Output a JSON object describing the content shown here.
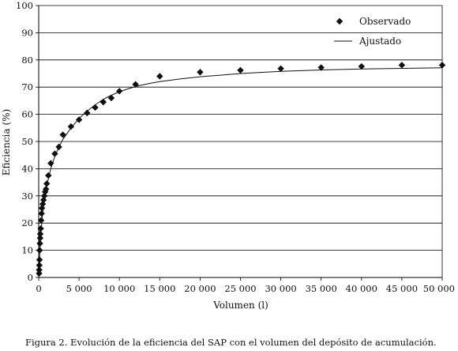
{
  "caption": "Figura 2. Evolución de la eficiencia del SAP con el volumen del depósito de acumulación.",
  "chart_data": {
    "type": "scatter",
    "title": "",
    "xlabel": "Volumen (l)",
    "ylabel": "Eficiencia (%)",
    "xlim": [
      0,
      50000
    ],
    "ylim": [
      0,
      100
    ],
    "x_ticks": [
      0,
      5000,
      10000,
      15000,
      20000,
      25000,
      30000,
      35000,
      40000,
      45000,
      50000
    ],
    "x_tick_labels": [
      "0",
      "5 000",
      "10 000",
      "15 000",
      "20 000",
      "25 000",
      "30 000",
      "35 000",
      "40 000",
      "45 000",
      "50 000"
    ],
    "y_ticks": [
      0,
      10,
      20,
      30,
      40,
      50,
      60,
      70,
      80,
      90,
      100
    ],
    "y_tick_labels": [
      "0",
      "10",
      "20",
      "30",
      "40",
      "50",
      "60",
      "70",
      "80",
      "90",
      "100"
    ],
    "grid": "horizontal",
    "legend_position": "top-right",
    "colors": {
      "series": "#111111",
      "grid": "#000000",
      "background": "#ffffff"
    },
    "series": [
      {
        "name": "Observado",
        "type": "scatter",
        "marker": "diamond",
        "x": [
          50,
          60,
          80,
          100,
          120,
          150,
          180,
          200,
          250,
          300,
          350,
          400,
          500,
          600,
          700,
          800,
          900,
          1000,
          1200,
          1500,
          2000,
          2500,
          3000,
          4000,
          5000,
          6000,
          7000,
          8000,
          9000,
          10000,
          12000,
          15000,
          20000,
          25000,
          30000,
          35000,
          40000,
          45000,
          50000
        ],
        "y": [
          1.5,
          2.8,
          4.5,
          6.5,
          10,
          12.5,
          14.5,
          16,
          18,
          21,
          23.5,
          25.5,
          27,
          28.5,
          30,
          31.5,
          32.5,
          34.5,
          37.5,
          42,
          45.5,
          48,
          52.5,
          55.5,
          58,
          60.5,
          62.5,
          64.5,
          66,
          68.5,
          71,
          74,
          75.5,
          76.2,
          76.8,
          77.2,
          77.6,
          78.1,
          78.1
        ]
      },
      {
        "name": "Ajustado",
        "type": "line",
        "x": [
          0,
          100,
          200,
          400,
          600,
          800,
          1000,
          1500,
          2000,
          2500,
          3000,
          4000,
          5000,
          6000,
          7000,
          8000,
          9000,
          10000,
          11000,
          12000,
          13000,
          14000,
          15000,
          17500,
          20000,
          22500,
          25000,
          30000,
          35000,
          40000,
          45000,
          50000
        ],
        "y": [
          0,
          6.5,
          12.5,
          21,
          26.5,
          30.5,
          33.8,
          40,
          44.5,
          48,
          50.8,
          55,
          58.5,
          61.2,
          63.5,
          65.5,
          67,
          68.3,
          69.3,
          70.2,
          70.9,
          71.5,
          72,
          73,
          73.8,
          74.4,
          75,
          75.8,
          76.3,
          76.7,
          76.9,
          77.1
        ]
      }
    ]
  }
}
